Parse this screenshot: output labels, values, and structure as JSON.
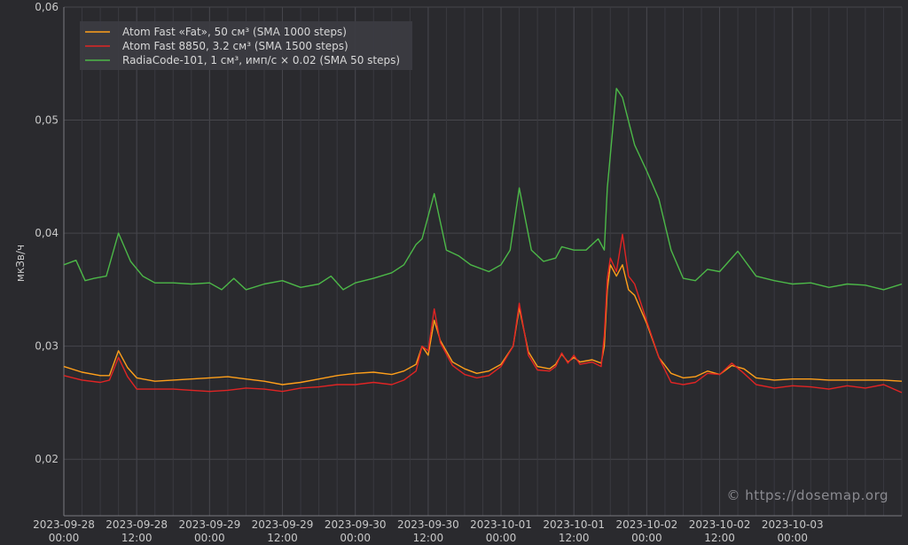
{
  "chart_data": {
    "type": "line",
    "ylabel": "мкЗв/ч",
    "ylim": [
      0.015,
      0.06
    ],
    "y_ticks": [
      {
        "value": 0.02,
        "label": "0,02"
      },
      {
        "value": 0.03,
        "label": "0,03"
      },
      {
        "value": 0.04,
        "label": "0,04"
      },
      {
        "value": 0.05,
        "label": "0,05"
      },
      {
        "value": 0.06,
        "label": "0,06"
      }
    ],
    "xlim": [
      "2023-09-28 00:00",
      "2023-10-03 18:00"
    ],
    "x_ticks": [
      {
        "value": "2023-09-28 00:00",
        "date": "2023-09-28",
        "time": "00:00"
      },
      {
        "value": "2023-09-28 12:00",
        "date": "2023-09-28",
        "time": "12:00"
      },
      {
        "value": "2023-09-29 00:00",
        "date": "2023-09-29",
        "time": "00:00"
      },
      {
        "value": "2023-09-29 12:00",
        "date": "2023-09-29",
        "time": "12:00"
      },
      {
        "value": "2023-09-30 00:00",
        "date": "2023-09-30",
        "time": "00:00"
      },
      {
        "value": "2023-09-30 12:00",
        "date": "2023-09-30",
        "time": "12:00"
      },
      {
        "value": "2023-10-01 00:00",
        "date": "2023-10-01",
        "time": "00:00"
      },
      {
        "value": "2023-10-01 12:00",
        "date": "2023-10-01",
        "time": "12:00"
      },
      {
        "value": "2023-10-02 00:00",
        "date": "2023-10-02",
        "time": "00:00"
      },
      {
        "value": "2023-10-02 12:00",
        "date": "2023-10-02",
        "time": "12:00"
      },
      {
        "value": "2023-10-03 00:00",
        "date": "2023-10-03",
        "time": "00:00"
      }
    ],
    "grid": true,
    "legend_position": "top-left",
    "series": [
      {
        "name": "Atom Fast «Fat», 50 см³ (SMA 1000 steps)",
        "color": "#ff9f1a",
        "points": [
          [
            "2023-09-28 00:00",
            0.0282
          ],
          [
            "2023-09-28 03:00",
            0.0277
          ],
          [
            "2023-09-28 06:00",
            0.0274
          ],
          [
            "2023-09-28 07:30",
            0.0274
          ],
          [
            "2023-09-28 09:00",
            0.0296
          ],
          [
            "2023-09-28 10:30",
            0.0281
          ],
          [
            "2023-09-28 12:00",
            0.0272
          ],
          [
            "2023-09-28 15:00",
            0.0269
          ],
          [
            "2023-09-28 18:00",
            0.027
          ],
          [
            "2023-09-28 21:00",
            0.0271
          ],
          [
            "2023-09-29 00:00",
            0.0272
          ],
          [
            "2023-09-29 03:00",
            0.0273
          ],
          [
            "2023-09-29 06:00",
            0.0271
          ],
          [
            "2023-09-29 09:00",
            0.0269
          ],
          [
            "2023-09-29 12:00",
            0.0266
          ],
          [
            "2023-09-29 15:00",
            0.0268
          ],
          [
            "2023-09-29 18:00",
            0.0271
          ],
          [
            "2023-09-29 21:00",
            0.0274
          ],
          [
            "2023-09-30 00:00",
            0.0276
          ],
          [
            "2023-09-30 03:00",
            0.0277
          ],
          [
            "2023-09-30 06:00",
            0.0275
          ],
          [
            "2023-09-30 08:00",
            0.0278
          ],
          [
            "2023-09-30 10:00",
            0.0284
          ],
          [
            "2023-09-30 11:00",
            0.03
          ],
          [
            "2023-09-30 12:00",
            0.0292
          ],
          [
            "2023-09-30 13:00",
            0.0323
          ],
          [
            "2023-09-30 14:00",
            0.0305
          ],
          [
            "2023-09-30 16:00",
            0.0286
          ],
          [
            "2023-09-30 18:00",
            0.028
          ],
          [
            "2023-09-30 20:00",
            0.0276
          ],
          [
            "2023-09-30 22:00",
            0.0278
          ],
          [
            "2023-10-01 00:00",
            0.0284
          ],
          [
            "2023-10-01 02:00",
            0.03
          ],
          [
            "2023-10-01 03:00",
            0.0334
          ],
          [
            "2023-10-01 04:30",
            0.0295
          ],
          [
            "2023-10-01 06:00",
            0.0282
          ],
          [
            "2023-10-01 08:00",
            0.028
          ],
          [
            "2023-10-01 09:00",
            0.0284
          ],
          [
            "2023-10-01 10:00",
            0.0293
          ],
          [
            "2023-10-01 11:00",
            0.0286
          ],
          [
            "2023-10-01 12:00",
            0.029
          ],
          [
            "2023-10-01 13:00",
            0.0286
          ],
          [
            "2023-10-01 15:00",
            0.0288
          ],
          [
            "2023-10-01 16:30",
            0.0285
          ],
          [
            "2023-10-01 17:00",
            0.03
          ],
          [
            "2023-10-01 17:30",
            0.035
          ],
          [
            "2023-10-01 18:00",
            0.0372
          ],
          [
            "2023-10-01 19:00",
            0.0362
          ],
          [
            "2023-10-01 20:00",
            0.0372
          ],
          [
            "2023-10-01 21:00",
            0.035
          ],
          [
            "2023-10-01 22:00",
            0.0345
          ],
          [
            "2023-10-02 00:00",
            0.032
          ],
          [
            "2023-10-02 02:00",
            0.029
          ],
          [
            "2023-10-02 04:00",
            0.0276
          ],
          [
            "2023-10-02 06:00",
            0.0272
          ],
          [
            "2023-10-02 08:00",
            0.0273
          ],
          [
            "2023-10-02 10:00",
            0.0278
          ],
          [
            "2023-10-02 12:00",
            0.0275
          ],
          [
            "2023-10-02 14:00",
            0.0283
          ],
          [
            "2023-10-02 16:00",
            0.028
          ],
          [
            "2023-10-02 18:00",
            0.0272
          ],
          [
            "2023-10-02 21:00",
            0.027
          ],
          [
            "2023-10-03 00:00",
            0.0271
          ],
          [
            "2023-10-03 03:00",
            0.0271
          ],
          [
            "2023-10-03 06:00",
            0.027
          ],
          [
            "2023-10-03 09:00",
            0.027
          ],
          [
            "2023-10-03 12:00",
            0.027
          ],
          [
            "2023-10-03 15:00",
            0.027
          ],
          [
            "2023-10-03 18:00",
            0.0269
          ]
        ]
      },
      {
        "name": "Atom Fast 8850, 3.2 см³ (SMA 1500 steps)",
        "color": "#e02424",
        "points": [
          [
            "2023-09-28 00:00",
            0.0274
          ],
          [
            "2023-09-28 03:00",
            0.027
          ],
          [
            "2023-09-28 06:00",
            0.0268
          ],
          [
            "2023-09-28 07:30",
            0.027
          ],
          [
            "2023-09-28 09:00",
            0.029
          ],
          [
            "2023-09-28 10:30",
            0.0273
          ],
          [
            "2023-09-28 12:00",
            0.0262
          ],
          [
            "2023-09-28 15:00",
            0.0262
          ],
          [
            "2023-09-28 18:00",
            0.0262
          ],
          [
            "2023-09-28 21:00",
            0.0261
          ],
          [
            "2023-09-29 00:00",
            0.026
          ],
          [
            "2023-09-29 03:00",
            0.0261
          ],
          [
            "2023-09-29 06:00",
            0.0263
          ],
          [
            "2023-09-29 09:00",
            0.0262
          ],
          [
            "2023-09-29 12:00",
            0.026
          ],
          [
            "2023-09-29 15:00",
            0.0263
          ],
          [
            "2023-09-29 18:00",
            0.0264
          ],
          [
            "2023-09-29 21:00",
            0.0266
          ],
          [
            "2023-09-30 00:00",
            0.0266
          ],
          [
            "2023-09-30 03:00",
            0.0268
          ],
          [
            "2023-09-30 06:00",
            0.0266
          ],
          [
            "2023-09-30 08:00",
            0.027
          ],
          [
            "2023-09-30 10:00",
            0.0278
          ],
          [
            "2023-09-30 11:00",
            0.03
          ],
          [
            "2023-09-30 12:00",
            0.0296
          ],
          [
            "2023-09-30 13:00",
            0.0333
          ],
          [
            "2023-09-30 14:00",
            0.0303
          ],
          [
            "2023-09-30 16:00",
            0.0283
          ],
          [
            "2023-09-30 18:00",
            0.0275
          ],
          [
            "2023-09-30 20:00",
            0.0272
          ],
          [
            "2023-09-30 22:00",
            0.0274
          ],
          [
            "2023-10-01 00:00",
            0.0282
          ],
          [
            "2023-10-01 02:00",
            0.03
          ],
          [
            "2023-10-01 03:00",
            0.0338
          ],
          [
            "2023-10-01 04:30",
            0.0292
          ],
          [
            "2023-10-01 06:00",
            0.0279
          ],
          [
            "2023-10-01 08:00",
            0.0278
          ],
          [
            "2023-10-01 09:00",
            0.0282
          ],
          [
            "2023-10-01 10:00",
            0.0294
          ],
          [
            "2023-10-01 11:00",
            0.0285
          ],
          [
            "2023-10-01 12:00",
            0.0292
          ],
          [
            "2023-10-01 13:00",
            0.0284
          ],
          [
            "2023-10-01 15:00",
            0.0286
          ],
          [
            "2023-10-01 16:30",
            0.0282
          ],
          [
            "2023-10-01 17:00",
            0.031
          ],
          [
            "2023-10-01 17:30",
            0.036
          ],
          [
            "2023-10-01 18:00",
            0.0378
          ],
          [
            "2023-10-01 19:00",
            0.0366
          ],
          [
            "2023-10-01 20:00",
            0.0399
          ],
          [
            "2023-10-01 21:00",
            0.0362
          ],
          [
            "2023-10-01 22:00",
            0.0355
          ],
          [
            "2023-10-02 00:00",
            0.0322
          ],
          [
            "2023-10-02 02:00",
            0.029
          ],
          [
            "2023-10-02 04:00",
            0.0268
          ],
          [
            "2023-10-02 06:00",
            0.0266
          ],
          [
            "2023-10-02 08:00",
            0.0268
          ],
          [
            "2023-10-02 10:00",
            0.0276
          ],
          [
            "2023-10-02 12:00",
            0.0275
          ],
          [
            "2023-10-02 14:00",
            0.0285
          ],
          [
            "2023-10-02 16:00",
            0.0276
          ],
          [
            "2023-10-02 18:00",
            0.0266
          ],
          [
            "2023-10-02 21:00",
            0.0263
          ],
          [
            "2023-10-03 00:00",
            0.0265
          ],
          [
            "2023-10-03 03:00",
            0.0264
          ],
          [
            "2023-10-03 06:00",
            0.0262
          ],
          [
            "2023-10-03 09:00",
            0.0265
          ],
          [
            "2023-10-03 12:00",
            0.0263
          ],
          [
            "2023-10-03 15:00",
            0.0266
          ],
          [
            "2023-10-03 18:00",
            0.0259
          ]
        ]
      },
      {
        "name": "RadiaCode-101, 1 см³, имп/с × 0.02 (SMA 50 steps)",
        "color": "#4cb848",
        "points": [
          [
            "2023-09-28 00:00",
            0.0372
          ],
          [
            "2023-09-28 02:00",
            0.0376
          ],
          [
            "2023-09-28 03:30",
            0.0358
          ],
          [
            "2023-09-28 05:00",
            0.036
          ],
          [
            "2023-09-28 07:00",
            0.0362
          ],
          [
            "2023-09-28 09:00",
            0.04
          ],
          [
            "2023-09-28 11:00",
            0.0375
          ],
          [
            "2023-09-28 13:00",
            0.0362
          ],
          [
            "2023-09-28 15:00",
            0.0356
          ],
          [
            "2023-09-28 18:00",
            0.0356
          ],
          [
            "2023-09-28 21:00",
            0.0355
          ],
          [
            "2023-09-29 00:00",
            0.0356
          ],
          [
            "2023-09-29 02:00",
            0.035
          ],
          [
            "2023-09-29 04:00",
            0.036
          ],
          [
            "2023-09-29 06:00",
            0.035
          ],
          [
            "2023-09-29 09:00",
            0.0355
          ],
          [
            "2023-09-29 12:00",
            0.0358
          ],
          [
            "2023-09-29 15:00",
            0.0352
          ],
          [
            "2023-09-29 18:00",
            0.0355
          ],
          [
            "2023-09-29 20:00",
            0.0362
          ],
          [
            "2023-09-29 22:00",
            0.035
          ],
          [
            "2023-09-30 00:00",
            0.0356
          ],
          [
            "2023-09-30 03:00",
            0.036
          ],
          [
            "2023-09-30 06:00",
            0.0365
          ],
          [
            "2023-09-30 08:00",
            0.0372
          ],
          [
            "2023-09-30 10:00",
            0.039
          ],
          [
            "2023-09-30 11:00",
            0.0395
          ],
          [
            "2023-09-30 13:00",
            0.0435
          ],
          [
            "2023-09-30 15:00",
            0.0385
          ],
          [
            "2023-09-30 17:00",
            0.038
          ],
          [
            "2023-09-30 19:00",
            0.0372
          ],
          [
            "2023-09-30 22:00",
            0.0366
          ],
          [
            "2023-10-01 00:00",
            0.0372
          ],
          [
            "2023-10-01 01:30",
            0.0385
          ],
          [
            "2023-10-01 03:00",
            0.044
          ],
          [
            "2023-10-01 05:00",
            0.0385
          ],
          [
            "2023-10-01 07:00",
            0.0375
          ],
          [
            "2023-10-01 09:00",
            0.0378
          ],
          [
            "2023-10-01 10:00",
            0.0388
          ],
          [
            "2023-10-01 12:00",
            0.0385
          ],
          [
            "2023-10-01 14:00",
            0.0385
          ],
          [
            "2023-10-01 16:00",
            0.0395
          ],
          [
            "2023-10-01 17:00",
            0.0385
          ],
          [
            "2023-10-01 17:30",
            0.044
          ],
          [
            "2023-10-01 19:00",
            0.0528
          ],
          [
            "2023-10-01 20:00",
            0.052
          ],
          [
            "2023-10-01 22:00",
            0.0478
          ],
          [
            "2023-10-02 00:00",
            0.0455
          ],
          [
            "2023-10-02 02:00",
            0.043
          ],
          [
            "2023-10-02 04:00",
            0.0385
          ],
          [
            "2023-10-02 06:00",
            0.036
          ],
          [
            "2023-10-02 08:00",
            0.0358
          ],
          [
            "2023-10-02 10:00",
            0.0368
          ],
          [
            "2023-10-02 12:00",
            0.0366
          ],
          [
            "2023-10-02 15:00",
            0.0384
          ],
          [
            "2023-10-02 18:00",
            0.0362
          ],
          [
            "2023-10-02 21:00",
            0.0358
          ],
          [
            "2023-10-03 00:00",
            0.0355
          ],
          [
            "2023-10-03 03:00",
            0.0356
          ],
          [
            "2023-10-03 06:00",
            0.0352
          ],
          [
            "2023-10-03 09:00",
            0.0355
          ],
          [
            "2023-10-03 12:00",
            0.0354
          ],
          [
            "2023-10-03 15:00",
            0.035
          ],
          [
            "2023-10-03 18:00",
            0.0355
          ]
        ]
      }
    ]
  },
  "watermark": "© https://dosemap.org",
  "colors": {
    "background": "#2a2a2e",
    "grid": "#46464c",
    "legend_bg": "#3c3c42",
    "text": "#c8c8c8"
  }
}
